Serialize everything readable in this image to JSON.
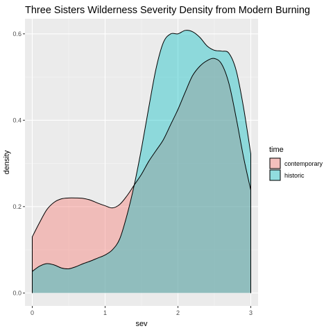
{
  "chart_data": {
    "type": "area",
    "title": "Three Sisters Wilderness Severity Density from Modern Burning",
    "xlabel": "sev",
    "ylabel": "density",
    "xlim": [
      -0.1,
      3.1
    ],
    "ylim": [
      -0.03,
      0.635
    ],
    "x_ticks": [
      0,
      1,
      2,
      3
    ],
    "y_ticks": [
      0.0,
      0.2,
      0.4,
      0.6
    ],
    "x_tick_labels": [
      "0",
      "1",
      "2",
      "3"
    ],
    "y_tick_labels": [
      "0.0",
      "0.2",
      "0.4",
      "0.6"
    ],
    "grid": true,
    "legend": {
      "title": "time",
      "position": "right",
      "entries": [
        "contemporary",
        "historic"
      ]
    },
    "series": [
      {
        "name": "contemporary",
        "color": "#f8766d",
        "x": [
          0,
          0.1,
          0.2,
          0.3,
          0.4,
          0.5,
          0.6,
          0.7,
          0.8,
          0.9,
          1.0,
          1.1,
          1.2,
          1.3,
          1.4,
          1.5,
          1.6,
          1.7,
          1.8,
          1.9,
          2.0,
          2.1,
          2.2,
          2.3,
          2.4,
          2.5,
          2.6,
          2.7,
          2.8,
          2.9,
          3.0
        ],
        "values": [
          0.13,
          0.163,
          0.193,
          0.21,
          0.218,
          0.22,
          0.22,
          0.219,
          0.215,
          0.208,
          0.202,
          0.197,
          0.205,
          0.225,
          0.25,
          0.275,
          0.305,
          0.33,
          0.355,
          0.39,
          0.425,
          0.465,
          0.503,
          0.525,
          0.538,
          0.543,
          0.53,
          0.485,
          0.405,
          0.315,
          0.238
        ]
      },
      {
        "name": "historic",
        "color": "#00bfc4",
        "x": [
          0,
          0.1,
          0.2,
          0.3,
          0.4,
          0.5,
          0.6,
          0.7,
          0.8,
          0.9,
          1.0,
          1.1,
          1.2,
          1.3,
          1.4,
          1.5,
          1.6,
          1.7,
          1.8,
          1.9,
          2.0,
          2.1,
          2.2,
          2.3,
          2.4,
          2.5,
          2.6,
          2.7,
          2.8,
          2.9,
          3.0
        ],
        "values": [
          0.05,
          0.062,
          0.068,
          0.065,
          0.058,
          0.056,
          0.061,
          0.068,
          0.074,
          0.081,
          0.088,
          0.1,
          0.125,
          0.18,
          0.25,
          0.335,
          0.43,
          0.52,
          0.58,
          0.6,
          0.6,
          0.608,
          0.605,
          0.592,
          0.572,
          0.562,
          0.56,
          0.555,
          0.515,
          0.43,
          0.322
        ]
      }
    ]
  }
}
